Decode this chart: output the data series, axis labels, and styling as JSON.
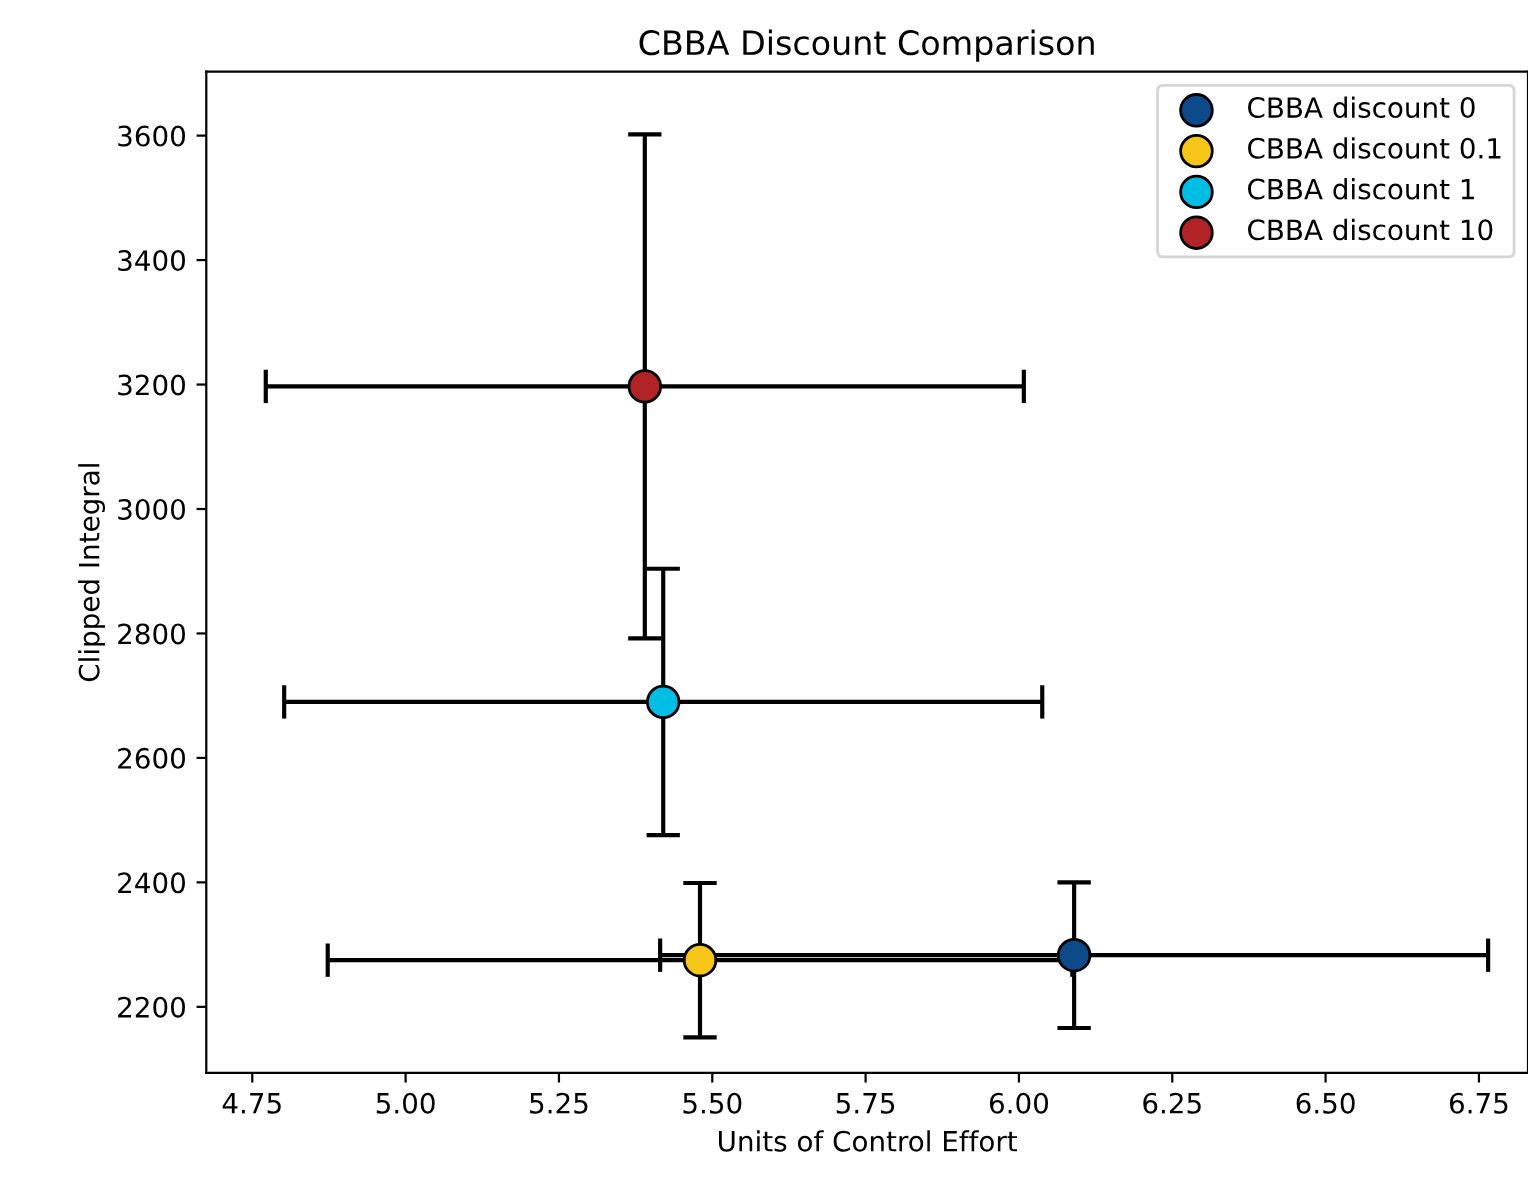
{
  "chart_data": {
    "type": "scatter",
    "title": "CBBA Discount Comparison",
    "xlabel": "Units of Control Effort",
    "ylabel": "Clipped Integral",
    "series": [
      {
        "name": "CBBA discount 0",
        "color": "#0d4a8a",
        "x": [
          6.09
        ],
        "values": [
          2283
        ],
        "errors": [
          117
        ],
        "xerrors": [
          0.675
        ]
      },
      {
        "name": "CBBA discount 0.1",
        "color": "#f5c518",
        "x": [
          5.48
        ],
        "values": [
          2275
        ],
        "errors": [
          124
        ],
        "xerrors": [
          0.607
        ]
      },
      {
        "name": "CBBA discount 1",
        "color": "#00bde3",
        "x": [
          5.42
        ],
        "values": [
          2690
        ],
        "errors": [
          214
        ],
        "xerrors": [
          0.618
        ]
      },
      {
        "name": "CBBA discount 10",
        "color": "#b22328",
        "x": [
          5.39
        ],
        "values": [
          3197
        ],
        "errors": [
          405
        ],
        "xerrors": [
          0.618
        ]
      }
    ],
    "xlim": [
      4.675,
      6.83
    ],
    "ylim": [
      2094,
      3703
    ],
    "xticks": [
      {
        "value": 4.75,
        "label": "4.75"
      },
      {
        "value": 5.0,
        "label": "5.00"
      },
      {
        "value": 5.25,
        "label": "5.25"
      },
      {
        "value": 5.5,
        "label": "5.50"
      },
      {
        "value": 5.75,
        "label": "5.75"
      },
      {
        "value": 6.0,
        "label": "6.00"
      },
      {
        "value": 6.25,
        "label": "6.25"
      },
      {
        "value": 6.5,
        "label": "6.50"
      },
      {
        "value": 6.75,
        "label": "6.75"
      }
    ],
    "yticks": [
      2200,
      2400,
      2600,
      2800,
      3000,
      3200,
      3400,
      3600
    ],
    "marker": "circle",
    "legend": "top right",
    "grid": false
  }
}
